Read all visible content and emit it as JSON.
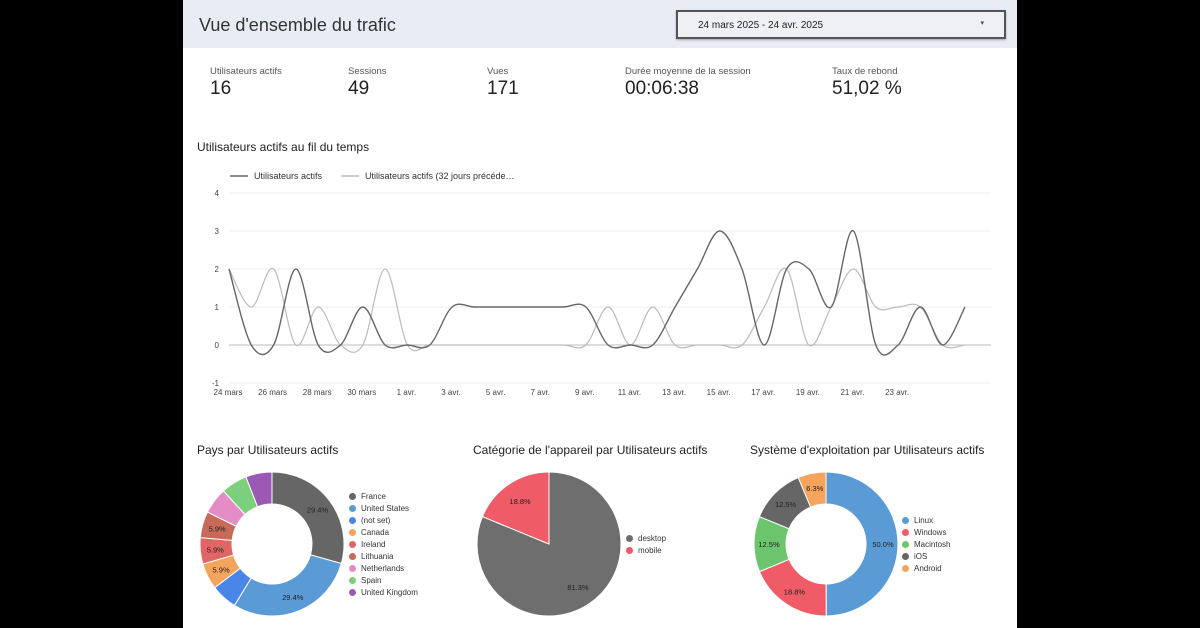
{
  "header": {
    "title": "Vue d'ensemble du trafic",
    "date_range": "24 mars 2025 - 24 avr. 2025",
    "caret": "▾"
  },
  "kpis": [
    {
      "label": "Utilisateurs actifs",
      "value": "16"
    },
    {
      "label": "Sessions",
      "value": "49"
    },
    {
      "label": "Vues",
      "value": "171"
    },
    {
      "label": "Durée moyenne de la session",
      "value": "00:06:38"
    },
    {
      "label": "Taux de rebond",
      "value": "51,02 %"
    }
  ],
  "colors": {
    "current_series": "#666666",
    "previous_series": "#bbbbbb",
    "grid": "#eeeeee"
  },
  "chart_data": [
    {
      "type": "line",
      "title": "Utilisateurs actifs au fil du temps",
      "ylim": [
        -1,
        4
      ],
      "y_ticks": [
        "4",
        "3",
        "2",
        "1",
        "0",
        "-1"
      ],
      "x_tick_labels": [
        "24 mars",
        "26 mars",
        "28 mars",
        "30 mars",
        "1 avr.",
        "3 avr.",
        "5 avr.",
        "7 avr.",
        "9 avr.",
        "11 avr.",
        "13 avr.",
        "15 avr.",
        "17 avr.",
        "19 avr.",
        "21 avr.",
        "23 avr."
      ],
      "series": [
        {
          "name": "Utilisateurs actifs",
          "color": "#666666",
          "values": [
            2,
            0,
            0,
            2,
            0,
            0,
            1,
            0,
            0,
            0,
            1,
            1,
            1,
            1,
            1,
            1,
            1,
            0,
            0,
            0,
            1,
            2,
            3,
            2,
            0,
            2,
            2,
            1,
            3,
            0,
            0,
            1,
            0,
            1
          ]
        },
        {
          "name": "Utilisateurs actifs (32 jours précéde…",
          "color": "#bbbbbb",
          "values": [
            2,
            1,
            2,
            0,
            1,
            0,
            0,
            2,
            0,
            0,
            0,
            0,
            0,
            0,
            0,
            0,
            0,
            1,
            0,
            1,
            0,
            0,
            0,
            0,
            1,
            2,
            0,
            1,
            2,
            1,
            1,
            1,
            0,
            0
          ]
        }
      ],
      "grid": true,
      "legend": "top-left"
    },
    {
      "type": "pie",
      "style": "donut",
      "title": "Pays par Utilisateurs actifs",
      "slices": [
        {
          "label": "France",
          "value": 29.4,
          "color": "#666666",
          "text": "29.4%"
        },
        {
          "label": "United States",
          "value": 29.4,
          "color": "#5b9bd5",
          "text": "29.4%"
        },
        {
          "label": "(not set)",
          "value": 5.9,
          "color": "#4a86e8",
          "text": ""
        },
        {
          "label": "Canada",
          "value": 5.9,
          "color": "#f6a35c",
          "text": "5.9%"
        },
        {
          "label": "Ireland",
          "value": 5.9,
          "color": "#e06666",
          "text": "5.9%"
        },
        {
          "label": "Lithuania",
          "value": 5.9,
          "color": "#c76a5a",
          "text": "5.9%"
        },
        {
          "label": "Netherlands",
          "value": 5.9,
          "color": "#e48cc5",
          "text": ""
        },
        {
          "label": "Spain",
          "value": 5.9,
          "color": "#7ccf7c",
          "text": ""
        },
        {
          "label": "United Kingdom",
          "value": 5.9,
          "color": "#9b59b6",
          "text": ""
        }
      ],
      "legend": "right"
    },
    {
      "type": "pie",
      "title": "Catégorie de l'appareil par Utilisateurs actifs",
      "slices": [
        {
          "label": "desktop",
          "value": 81.3,
          "color": "#6e6e6e",
          "text": "81.3%"
        },
        {
          "label": "mobile",
          "value": 18.8,
          "color": "#ef5b66",
          "text": "18.8%"
        }
      ],
      "legend": "right"
    },
    {
      "type": "pie",
      "style": "donut",
      "title": "Système d'exploitation par Utilisateurs actifs",
      "slices": [
        {
          "label": "Linux",
          "value": 50.0,
          "color": "#5b9bd5",
          "text": "50.0%"
        },
        {
          "label": "Windows",
          "value": 18.8,
          "color": "#ef5b66",
          "text": "18.8%"
        },
        {
          "label": "Macintosh",
          "value": 12.5,
          "color": "#6cc46c",
          "text": "12.5%"
        },
        {
          "label": "iOS",
          "value": 12.5,
          "color": "#666666",
          "text": "12.5%"
        },
        {
          "label": "Android",
          "value": 6.3,
          "color": "#f6a35c",
          "text": "6.3%"
        }
      ],
      "legend": "right"
    }
  ]
}
